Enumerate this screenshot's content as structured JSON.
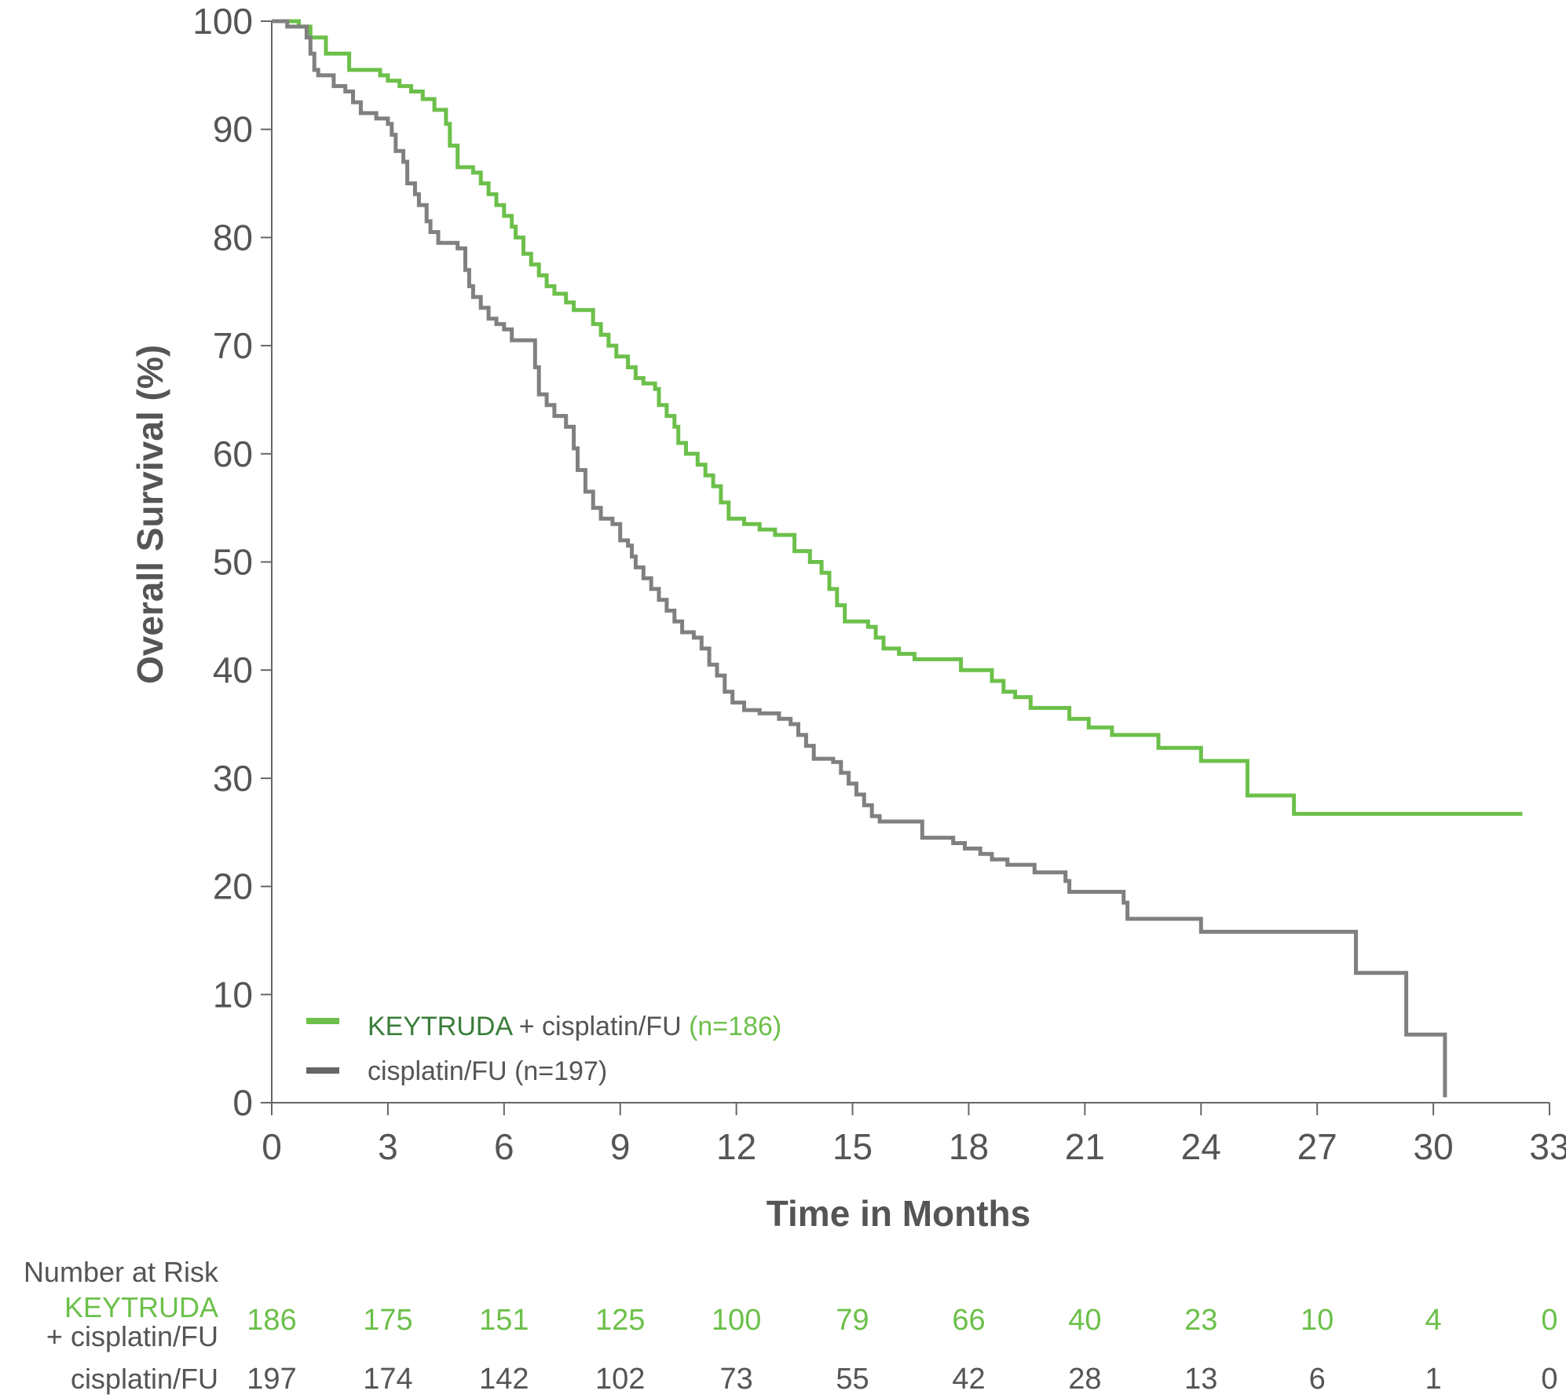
{
  "colors": {
    "keytruda": "#6cc04a",
    "keytruda_dark": "#3a7d3a",
    "control": "#808080",
    "text": "#555555",
    "axis": "#666666"
  },
  "chart_data": {
    "type": "line",
    "subtype": "kaplan-meier-step",
    "title": "",
    "xlabel": "Time in Months",
    "ylabel": "Overall Survival (%)",
    "xlim": [
      0,
      33
    ],
    "ylim": [
      0,
      100
    ],
    "xticks": [
      0,
      3,
      6,
      9,
      12,
      15,
      18,
      21,
      24,
      27,
      30,
      33
    ],
    "yticks": [
      0,
      10,
      20,
      30,
      40,
      50,
      60,
      70,
      80,
      90,
      100
    ],
    "legend_position": "bottom-left",
    "legend": [
      {
        "series": "keytruda",
        "name_main": "KEYTRUDA",
        "name_rest": " + cisplatin/FU ",
        "n_label": "(n=186)"
      },
      {
        "series": "control",
        "name_main": "cisplatin/FU ",
        "name_rest": "",
        "n_label": "(n=197)"
      }
    ],
    "series": [
      {
        "name": "KEYTRUDA + cisplatin/FU",
        "key": "keytruda",
        "points": [
          [
            0,
            100
          ],
          [
            0.7,
            100
          ],
          [
            0.7,
            99.5
          ],
          [
            1.0,
            99.5
          ],
          [
            1.0,
            98.5
          ],
          [
            1.4,
            98.5
          ],
          [
            1.4,
            97.0
          ],
          [
            2.0,
            97.0
          ],
          [
            2.0,
            95.5
          ],
          [
            2.6,
            95.5
          ],
          [
            2.8,
            95.0
          ],
          [
            3.0,
            94.5
          ],
          [
            3.3,
            94.0
          ],
          [
            3.6,
            93.5
          ],
          [
            3.9,
            92.8
          ],
          [
            4.2,
            91.8
          ],
          [
            4.5,
            90.5
          ],
          [
            4.6,
            88.5
          ],
          [
            4.8,
            86.5
          ],
          [
            5.2,
            86.0
          ],
          [
            5.4,
            85.0
          ],
          [
            5.6,
            84.0
          ],
          [
            5.8,
            83.0
          ],
          [
            6.0,
            82.0
          ],
          [
            6.2,
            81.0
          ],
          [
            6.3,
            80.0
          ],
          [
            6.5,
            78.5
          ],
          [
            6.7,
            77.5
          ],
          [
            6.9,
            76.5
          ],
          [
            7.1,
            75.5
          ],
          [
            7.3,
            74.8
          ],
          [
            7.6,
            74.0
          ],
          [
            7.8,
            73.3
          ],
          [
            8.2,
            73.3
          ],
          [
            8.3,
            72.0
          ],
          [
            8.5,
            71.0
          ],
          [
            8.7,
            70.0
          ],
          [
            8.9,
            69.0
          ],
          [
            9.2,
            68.0
          ],
          [
            9.4,
            67.0
          ],
          [
            9.6,
            66.5
          ],
          [
            9.9,
            66.0
          ],
          [
            10.0,
            64.5
          ],
          [
            10.2,
            63.5
          ],
          [
            10.4,
            62.5
          ],
          [
            10.5,
            61.0
          ],
          [
            10.7,
            60.0
          ],
          [
            11.0,
            59.0
          ],
          [
            11.2,
            58.0
          ],
          [
            11.4,
            57.0
          ],
          [
            11.6,
            55.5
          ],
          [
            11.8,
            54.0
          ],
          [
            12.2,
            53.5
          ],
          [
            12.6,
            53.0
          ],
          [
            13.0,
            52.5
          ],
          [
            13.5,
            51.0
          ],
          [
            13.9,
            50.0
          ],
          [
            14.2,
            49.0
          ],
          [
            14.4,
            47.5
          ],
          [
            14.6,
            46.0
          ],
          [
            14.8,
            44.5
          ],
          [
            15.4,
            44.0
          ],
          [
            15.6,
            43.0
          ],
          [
            15.8,
            42.0
          ],
          [
            16.2,
            41.5
          ],
          [
            16.6,
            41.0
          ],
          [
            17.8,
            41.0
          ],
          [
            17.8,
            40.0
          ],
          [
            18.2,
            40.0
          ],
          [
            18.6,
            39.0
          ],
          [
            18.9,
            38.0
          ],
          [
            19.2,
            37.5
          ],
          [
            19.6,
            36.5
          ],
          [
            20.6,
            36.5
          ],
          [
            20.6,
            35.5
          ],
          [
            21.1,
            35.5
          ],
          [
            21.1,
            34.7
          ],
          [
            21.7,
            34.7
          ],
          [
            21.7,
            34.0
          ],
          [
            22.9,
            34.0
          ],
          [
            22.9,
            32.8
          ],
          [
            24.0,
            32.8
          ],
          [
            24.0,
            31.6
          ],
          [
            25.2,
            31.6
          ],
          [
            25.2,
            28.4
          ],
          [
            26.4,
            28.4
          ],
          [
            26.4,
            26.7
          ],
          [
            32.3,
            26.7
          ]
        ]
      },
      {
        "name": "cisplatin/FU",
        "key": "control",
        "points": [
          [
            0,
            100
          ],
          [
            0.4,
            100
          ],
          [
            0.4,
            99.5
          ],
          [
            0.8,
            99.5
          ],
          [
            0.9,
            98.5
          ],
          [
            1.0,
            97.0
          ],
          [
            1.1,
            95.5
          ],
          [
            1.2,
            95.0
          ],
          [
            1.5,
            95.0
          ],
          [
            1.6,
            94.0
          ],
          [
            1.9,
            93.5
          ],
          [
            2.1,
            92.5
          ],
          [
            2.3,
            91.5
          ],
          [
            2.6,
            91.5
          ],
          [
            2.7,
            91.0
          ],
          [
            3.0,
            90.5
          ],
          [
            3.1,
            89.5
          ],
          [
            3.2,
            88.0
          ],
          [
            3.4,
            87.0
          ],
          [
            3.5,
            85.0
          ],
          [
            3.7,
            84.0
          ],
          [
            3.8,
            83.0
          ],
          [
            4.0,
            81.5
          ],
          [
            4.1,
            80.5
          ],
          [
            4.3,
            79.5
          ],
          [
            4.6,
            79.5
          ],
          [
            4.8,
            79.0
          ],
          [
            5.0,
            77.0
          ],
          [
            5.1,
            75.5
          ],
          [
            5.2,
            74.5
          ],
          [
            5.4,
            73.5
          ],
          [
            5.6,
            72.5
          ],
          [
            5.8,
            72.0
          ],
          [
            6.0,
            71.5
          ],
          [
            6.2,
            70.5
          ],
          [
            6.6,
            70.5
          ],
          [
            6.8,
            68.0
          ],
          [
            6.9,
            65.5
          ],
          [
            7.1,
            64.5
          ],
          [
            7.3,
            63.5
          ],
          [
            7.6,
            62.5
          ],
          [
            7.8,
            60.5
          ],
          [
            7.9,
            58.5
          ],
          [
            8.1,
            56.5
          ],
          [
            8.3,
            55.0
          ],
          [
            8.5,
            54.0
          ],
          [
            8.8,
            53.5
          ],
          [
            9.0,
            52.0
          ],
          [
            9.2,
            51.5
          ],
          [
            9.3,
            50.5
          ],
          [
            9.4,
            49.5
          ],
          [
            9.6,
            48.5
          ],
          [
            9.8,
            47.5
          ],
          [
            10.0,
            46.5
          ],
          [
            10.2,
            45.5
          ],
          [
            10.4,
            44.5
          ],
          [
            10.6,
            43.5
          ],
          [
            10.9,
            43.0
          ],
          [
            11.1,
            42.0
          ],
          [
            11.3,
            40.5
          ],
          [
            11.5,
            39.5
          ],
          [
            11.7,
            38.0
          ],
          [
            11.9,
            37.0
          ],
          [
            12.2,
            36.3
          ],
          [
            12.6,
            36.0
          ],
          [
            13.1,
            35.5
          ],
          [
            13.4,
            35.0
          ],
          [
            13.6,
            34.0
          ],
          [
            13.8,
            33.0
          ],
          [
            14.0,
            31.8
          ],
          [
            14.5,
            31.5
          ],
          [
            14.7,
            30.5
          ],
          [
            14.9,
            29.5
          ],
          [
            15.1,
            28.5
          ],
          [
            15.3,
            27.5
          ],
          [
            15.5,
            26.5
          ],
          [
            15.7,
            26.0
          ],
          [
            16.7,
            26.0
          ],
          [
            16.8,
            24.5
          ],
          [
            17.4,
            24.5
          ],
          [
            17.6,
            24.0
          ],
          [
            17.9,
            23.5
          ],
          [
            18.3,
            23.0
          ],
          [
            18.6,
            22.5
          ],
          [
            19.0,
            22.0
          ],
          [
            19.7,
            22.0
          ],
          [
            19.7,
            21.3
          ],
          [
            20.5,
            21.3
          ],
          [
            20.5,
            20.5
          ],
          [
            20.6,
            19.5
          ],
          [
            21.8,
            19.5
          ],
          [
            22.0,
            18.5
          ],
          [
            22.1,
            17.0
          ],
          [
            24.0,
            17.0
          ],
          [
            24.0,
            15.8
          ],
          [
            28.0,
            15.8
          ],
          [
            28.0,
            12.0
          ],
          [
            29.3,
            12.0
          ],
          [
            29.3,
            6.3
          ],
          [
            30.3,
            6.3
          ],
          [
            30.3,
            0.5
          ]
        ]
      }
    ],
    "risk_table": {
      "header": "Number at Risk",
      "rows": [
        {
          "key": "keytruda",
          "label_line1": "KEYTRUDA",
          "label_line2": "+ cisplatin/FU",
          "values": [
            186,
            175,
            151,
            125,
            100,
            79,
            66,
            40,
            23,
            10,
            4,
            0
          ]
        },
        {
          "key": "control",
          "label_line1": "cisplatin/FU",
          "label_line2": "",
          "values": [
            197,
            174,
            142,
            102,
            73,
            55,
            42,
            28,
            13,
            6,
            1,
            0
          ]
        }
      ]
    }
  }
}
